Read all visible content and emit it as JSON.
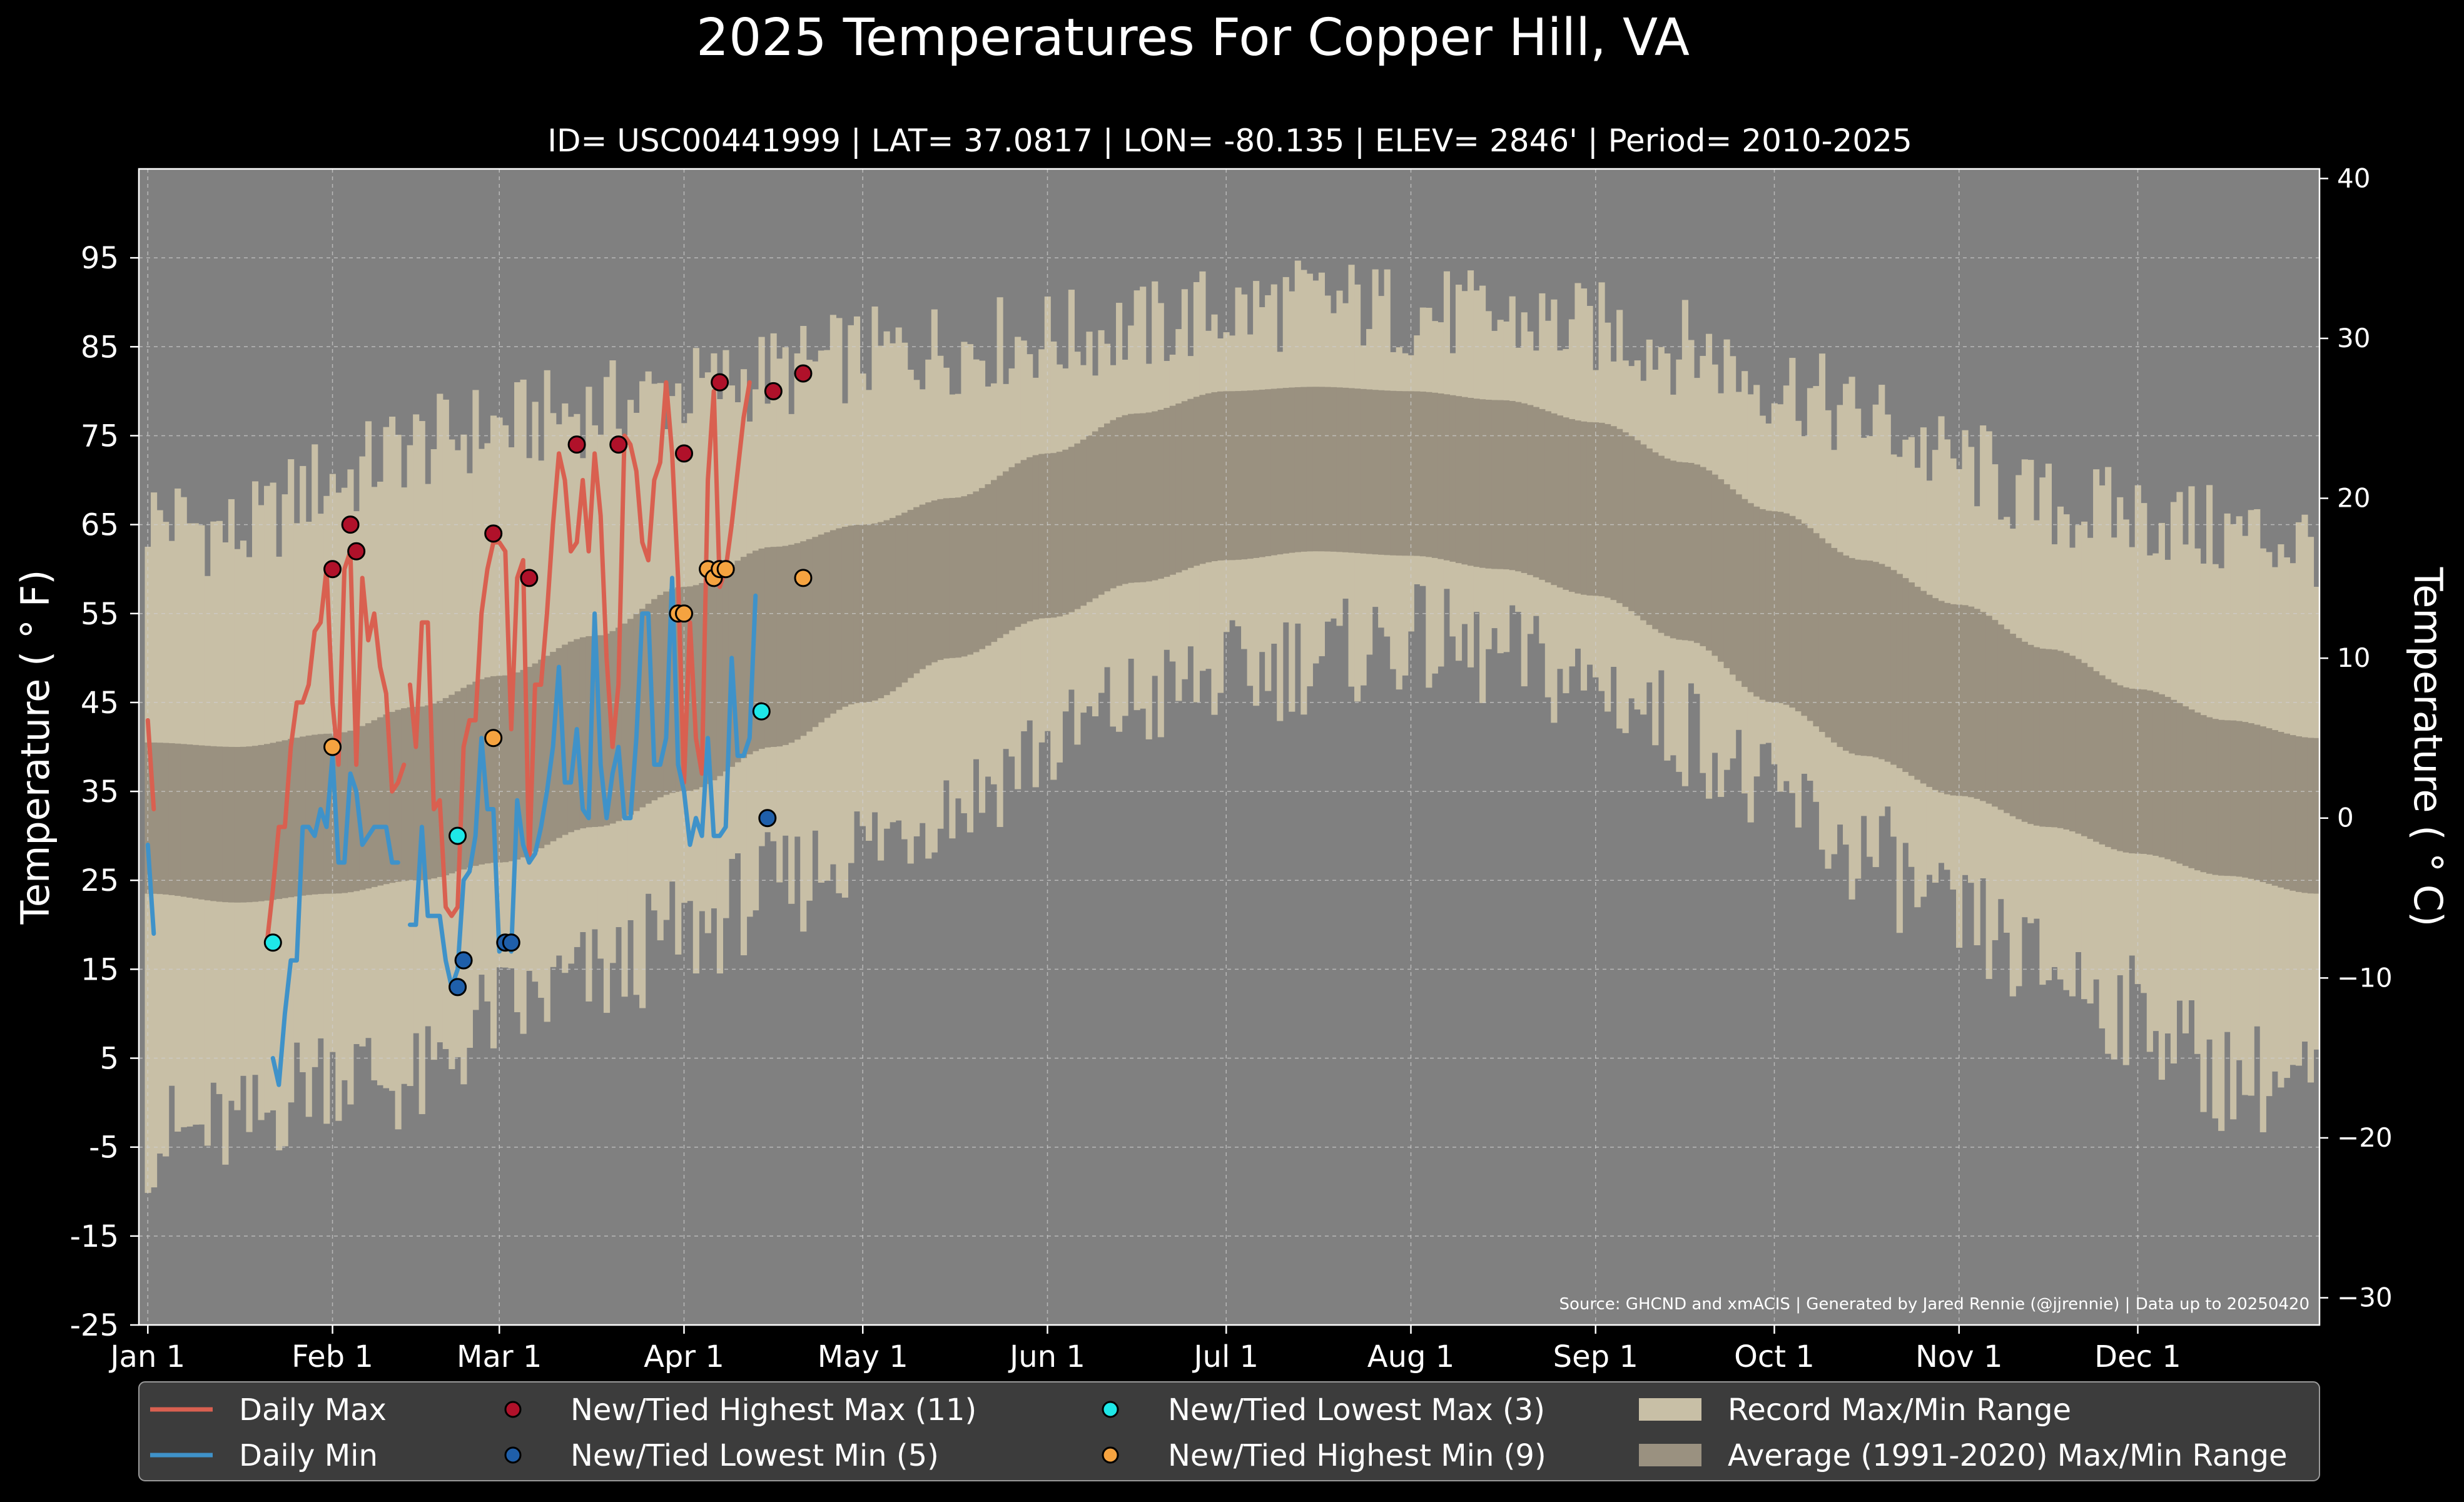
{
  "chart_data": {
    "type": "line",
    "title": "2025 Temperatures For Copper Hill, VA",
    "subtitle": "ID= USC00441999 | LAT= 37.0817 | LON= -80.135 | ELEV= 2846' | Period= 2010-2025",
    "ylabel": "Temperature ($^\\circ$F)",
    "ylabel_display": "Temperature ( ° F)",
    "y2label_display": "Temperature ( ° C)",
    "source": "Source: GHCND and xmACIS | Generated by Jared Rennie (@jjrennie) | Data up to 20250420",
    "ylim": [
      -25,
      105
    ],
    "y2lim": [
      -31.7,
      40.6
    ],
    "xlim": [
      -1.5,
      364.5
    ],
    "yticks": [
      -25,
      -15,
      -5,
      5,
      15,
      25,
      35,
      45,
      55,
      65,
      75,
      85,
      95
    ],
    "y2ticks": [
      -30,
      -20,
      -10,
      0,
      10,
      20,
      30,
      40
    ],
    "xticks": [
      {
        "label": "Jan 1",
        "day": 0
      },
      {
        "label": "Feb 1",
        "day": 31
      },
      {
        "label": "Mar 1",
        "day": 59
      },
      {
        "label": "Apr 1",
        "day": 90
      },
      {
        "label": "May 1",
        "day": 120
      },
      {
        "label": "Jun 1",
        "day": 151
      },
      {
        "label": "Jul 1",
        "day": 181
      },
      {
        "label": "Aug 1",
        "day": 212
      },
      {
        "label": "Sep 1",
        "day": 243
      },
      {
        "label": "Oct 1",
        "day": 273
      },
      {
        "label": "Nov 1",
        "day": 304
      },
      {
        "label": "Dec 1",
        "day": 334
      }
    ],
    "grid": true,
    "legend_position": "bottom",
    "colors": {
      "figure_bg": "#000000",
      "plot_bg": "#808080",
      "record_range": "#c8bfa6",
      "normal_range": "#9a9180",
      "daily_max": "#d96050",
      "daily_min": "#3f92c9",
      "new_high_max": "#b0112a",
      "new_low_min": "#1f5faa",
      "new_low_max": "#1ee8e8",
      "new_high_min": "#f5a340"
    },
    "record_range": {
      "anchors": [
        {
          "day": 0,
          "max": 66,
          "min": -4
        },
        {
          "day": 15,
          "max": 64,
          "min": -3
        },
        {
          "day": 31,
          "max": 70,
          "min": 4
        },
        {
          "day": 45,
          "max": 74,
          "min": 2
        },
        {
          "day": 59,
          "max": 76,
          "min": 10
        },
        {
          "day": 75,
          "max": 78,
          "min": 14
        },
        {
          "day": 90,
          "max": 80,
          "min": 19
        },
        {
          "day": 105,
          "max": 82,
          "min": 24
        },
        {
          "day": 120,
          "max": 84,
          "min": 29
        },
        {
          "day": 135,
          "max": 85,
          "min": 34
        },
        {
          "day": 151,
          "max": 86,
          "min": 40
        },
        {
          "day": 166,
          "max": 87,
          "min": 45
        },
        {
          "day": 181,
          "max": 89,
          "min": 48
        },
        {
          "day": 196,
          "max": 90,
          "min": 50
        },
        {
          "day": 212,
          "max": 89,
          "min": 52
        },
        {
          "day": 227,
          "max": 88,
          "min": 50
        },
        {
          "day": 243,
          "max": 87,
          "min": 47
        },
        {
          "day": 258,
          "max": 85,
          "min": 42
        },
        {
          "day": 273,
          "max": 81,
          "min": 34
        },
        {
          "day": 288,
          "max": 77,
          "min": 28
        },
        {
          "day": 304,
          "max": 72,
          "min": 20
        },
        {
          "day": 319,
          "max": 67,
          "min": 15
        },
        {
          "day": 334,
          "max": 66,
          "min": 10
        },
        {
          "day": 349,
          "max": 64,
          "min": 3
        },
        {
          "day": 364,
          "max": 63,
          "min": 2
        }
      ]
    },
    "normal_range": {
      "anchors": [
        {
          "day": 0,
          "max": 40.5,
          "min": 23.5
        },
        {
          "day": 15,
          "max": 40,
          "min": 22.5
        },
        {
          "day": 31,
          "max": 41.5,
          "min": 23.5
        },
        {
          "day": 45,
          "max": 44.5,
          "min": 25
        },
        {
          "day": 59,
          "max": 48,
          "min": 27
        },
        {
          "day": 75,
          "max": 52.5,
          "min": 31
        },
        {
          "day": 90,
          "max": 58,
          "min": 35
        },
        {
          "day": 105,
          "max": 62.5,
          "min": 40
        },
        {
          "day": 120,
          "max": 65,
          "min": 45
        },
        {
          "day": 135,
          "max": 68,
          "min": 50
        },
        {
          "day": 151,
          "max": 73,
          "min": 54.5
        },
        {
          "day": 166,
          "max": 77.5,
          "min": 58.5
        },
        {
          "day": 181,
          "max": 80,
          "min": 61
        },
        {
          "day": 196,
          "max": 80.5,
          "min": 62
        },
        {
          "day": 212,
          "max": 80,
          "min": 61.5
        },
        {
          "day": 227,
          "max": 79,
          "min": 60
        },
        {
          "day": 243,
          "max": 76.5,
          "min": 57
        },
        {
          "day": 258,
          "max": 72,
          "min": 52
        },
        {
          "day": 273,
          "max": 66.5,
          "min": 45
        },
        {
          "day": 288,
          "max": 61,
          "min": 39
        },
        {
          "day": 304,
          "max": 56,
          "min": 34.5
        },
        {
          "day": 319,
          "max": 51,
          "min": 31
        },
        {
          "day": 334,
          "max": 46.5,
          "min": 28
        },
        {
          "day": 349,
          "max": 43,
          "min": 25.5
        },
        {
          "day": 364,
          "max": 41,
          "min": 23.5
        }
      ]
    },
    "series": [
      {
        "name": "Daily Max",
        "segments": [
          {
            "start_day": 0,
            "values": [
              43,
              33
            ]
          },
          {
            "start_day": 20,
            "values": [
              18,
              24,
              31,
              31,
              40,
              45,
              45,
              47,
              53,
              54,
              60,
              45,
              38,
              60,
              62,
              38,
              59,
              52,
              55,
              49,
              46,
              35,
              36,
              38
            ]
          },
          {
            "start_day": 44,
            "values": [
              47,
              40,
              54,
              54,
              33,
              34,
              22,
              21,
              22,
              40,
              43,
              43,
              55,
              60,
              63,
              63,
              62,
              42,
              59,
              61,
              27,
              47,
              47,
              55,
              65,
              73,
              70,
              62,
              63,
              70,
              62,
              73,
              66,
              50,
              40,
              47,
              75,
              74,
              71,
              63,
              61,
              70,
              72,
              81,
              73,
              59,
              36,
              54,
              41,
              37,
              70,
              80,
              58,
              60,
              65,
              71,
              77,
              81
            ]
          }
        ]
      },
      {
        "name": "Daily Min",
        "segments": [
          {
            "start_day": 0,
            "values": [
              29,
              19
            ]
          },
          {
            "start_day": 21,
            "values": [
              5,
              2,
              10,
              16,
              16,
              31,
              31,
              30,
              33,
              31,
              39,
              27,
              27,
              37,
              35,
              29,
              30,
              31,
              31,
              31,
              27,
              27
            ]
          },
          {
            "start_day": 44,
            "values": [
              20,
              20,
              31,
              21,
              21,
              21,
              16,
              13,
              15,
              25,
              26,
              30,
              41,
              33,
              33,
              17,
              18,
              17,
              34,
              29,
              27,
              28,
              31,
              35,
              40,
              49,
              36,
              36,
              42,
              33,
              32,
              55,
              38,
              32,
              37,
              40,
              32,
              32,
              41,
              55,
              55,
              38,
              38,
              41,
              59,
              38,
              35,
              29,
              32,
              30,
              41,
              30,
              30,
              31,
              50,
              39,
              39,
              41,
              57
            ]
          }
        ]
      }
    ],
    "markers": {
      "new_tied_highest_max": [
        {
          "day": 31,
          "value": 60
        },
        {
          "day": 34,
          "value": 65
        },
        {
          "day": 35,
          "value": 62
        },
        {
          "day": 58,
          "value": 64
        },
        {
          "day": 64,
          "value": 59
        },
        {
          "day": 72,
          "value": 74
        },
        {
          "day": 79,
          "value": 74
        },
        {
          "day": 90,
          "value": 73
        },
        {
          "day": 96,
          "value": 81
        },
        {
          "day": 105,
          "value": 80
        },
        {
          "day": 110,
          "value": 82
        }
      ],
      "new_tied_lowest_min": [
        {
          "day": 52,
          "value": 13
        },
        {
          "day": 53,
          "value": 16
        },
        {
          "day": 60,
          "value": 18
        },
        {
          "day": 61,
          "value": 18
        },
        {
          "day": 104,
          "value": 32
        }
      ],
      "new_tied_lowest_max": [
        {
          "day": 21,
          "value": 18
        },
        {
          "day": 52,
          "value": 30
        },
        {
          "day": 103,
          "value": 44
        }
      ],
      "new_tied_highest_min": [
        {
          "day": 31,
          "value": 40
        },
        {
          "day": 58,
          "value": 41
        },
        {
          "day": 89,
          "value": 55
        },
        {
          "day": 90,
          "value": 55
        },
        {
          "day": 94,
          "value": 60
        },
        {
          "day": 95,
          "value": 59
        },
        {
          "day": 96,
          "value": 60
        },
        {
          "day": 97,
          "value": 60
        },
        {
          "day": 110,
          "value": 59
        }
      ]
    },
    "legend": [
      {
        "label": "Daily Max",
        "kind": "line",
        "color": "#d96050"
      },
      {
        "label": "New/Tied Highest Max (11)",
        "kind": "marker",
        "color": "#b0112a"
      },
      {
        "label": "New/Tied Lowest Max (3)",
        "kind": "marker",
        "color": "#1ee8e8"
      },
      {
        "label": "Record Max/Min Range",
        "kind": "patch",
        "color": "#c8bfa6"
      },
      {
        "label": "Daily Min",
        "kind": "line",
        "color": "#3f92c9"
      },
      {
        "label": "New/Tied Lowest Min (5)",
        "kind": "marker",
        "color": "#1f5faa"
      },
      {
        "label": "New/Tied Highest Min (9)",
        "kind": "marker",
        "color": "#f5a340"
      },
      {
        "label": "Average (1991-2020) Max/Min Range",
        "kind": "patch",
        "color": "#9a9180"
      }
    ]
  }
}
